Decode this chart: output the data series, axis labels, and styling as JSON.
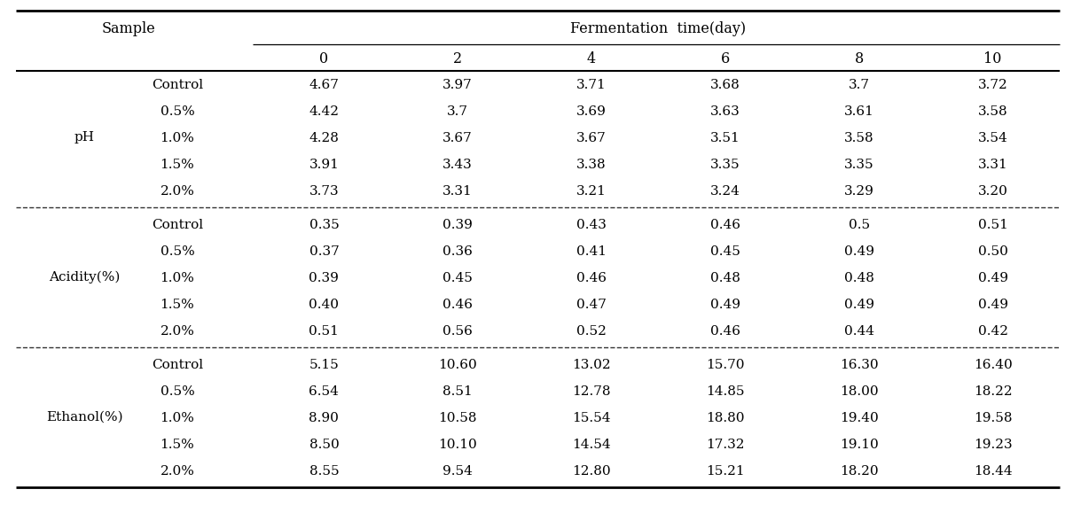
{
  "header_col1": "Sample",
  "header_fermentation": "Fermentation  time(day)",
  "time_headers": [
    "0",
    "2",
    "4",
    "6",
    "8",
    "10"
  ],
  "sections": [
    {
      "label": "pH",
      "rows": [
        {
          "sample": "Control",
          "values": [
            "4.67",
            "3.97",
            "3.71",
            "3.68",
            "3.7",
            "3.72"
          ]
        },
        {
          "sample": "0.5%",
          "values": [
            "4.42",
            "3.7",
            "3.69",
            "3.63",
            "3.61",
            "3.58"
          ]
        },
        {
          "sample": "1.0%",
          "values": [
            "4.28",
            "3.67",
            "3.67",
            "3.51",
            "3.58",
            "3.54"
          ]
        },
        {
          "sample": "1.5%",
          "values": [
            "3.91",
            "3.43",
            "3.38",
            "3.35",
            "3.35",
            "3.31"
          ]
        },
        {
          "sample": "2.0%",
          "values": [
            "3.73",
            "3.31",
            "3.21",
            "3.24",
            "3.29",
            "3.20"
          ]
        }
      ]
    },
    {
      "label": "Acidity(%)",
      "rows": [
        {
          "sample": "Control",
          "values": [
            "0.35",
            "0.39",
            "0.43",
            "0.46",
            "0.5",
            "0.51"
          ]
        },
        {
          "sample": "0.5%",
          "values": [
            "0.37",
            "0.36",
            "0.41",
            "0.45",
            "0.49",
            "0.50"
          ]
        },
        {
          "sample": "1.0%",
          "values": [
            "0.39",
            "0.45",
            "0.46",
            "0.48",
            "0.48",
            "0.49"
          ]
        },
        {
          "sample": "1.5%",
          "values": [
            "0.40",
            "0.46",
            "0.47",
            "0.49",
            "0.49",
            "0.49"
          ]
        },
        {
          "sample": "2.0%",
          "values": [
            "0.51",
            "0.56",
            "0.52",
            "0.46",
            "0.44",
            "0.42"
          ]
        }
      ]
    },
    {
      "label": "Ethanol(%)",
      "rows": [
        {
          "sample": "Control",
          "values": [
            "5.15",
            "10.60",
            "13.02",
            "15.70",
            "16.30",
            "16.40"
          ]
        },
        {
          "sample": "0.5%",
          "values": [
            "6.54",
            "8.51",
            "12.78",
            "14.85",
            "18.00",
            "18.22"
          ]
        },
        {
          "sample": "1.0%",
          "values": [
            "8.90",
            "10.58",
            "15.54",
            "18.80",
            "19.40",
            "19.58"
          ]
        },
        {
          "sample": "1.5%",
          "values": [
            "8.50",
            "10.10",
            "14.54",
            "17.32",
            "19.10",
            "19.23"
          ]
        },
        {
          "sample": "2.0%",
          "values": [
            "8.55",
            "9.54",
            "12.80",
            "15.21",
            "18.20",
            "18.44"
          ]
        }
      ]
    }
  ],
  "bg_color": "#ffffff",
  "text_color": "#000000",
  "font_size": 11.0,
  "header_font_size": 11.5,
  "fig_width": 12.1,
  "fig_height": 5.7,
  "dpi": 100
}
